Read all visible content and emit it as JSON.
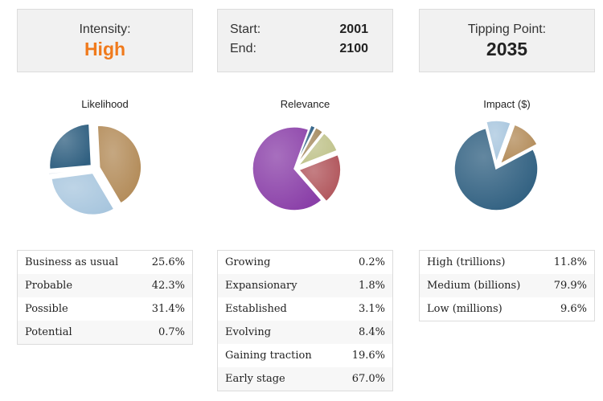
{
  "intensity": {
    "label": "Intensity:",
    "value": "High",
    "color": "#f07a1c"
  },
  "timeframe": {
    "start_label": "Start:",
    "start_value": "2001",
    "end_label": "End:",
    "end_value": "2100"
  },
  "tipping": {
    "label": "Tipping Point:",
    "value": "2035"
  },
  "chart_data": [
    {
      "type": "pie",
      "title": "Likelihood",
      "categories": [
        "Business as usual",
        "Probable",
        "Possible",
        "Potential"
      ],
      "values": [
        25.6,
        42.3,
        31.4,
        0.7
      ],
      "labels": [
        "25.6%",
        "42.3%",
        "31.4%",
        "0.7%"
      ]
    },
    {
      "type": "pie",
      "title": "Relevance",
      "categories": [
        "Growing",
        "Expansionary",
        "Established",
        "Evolving",
        "Gaining traction",
        "Early stage"
      ],
      "values": [
        0.2,
        1.8,
        3.1,
        8.4,
        19.6,
        67.0
      ],
      "labels": [
        "0.2%",
        "1.8%",
        "3.1%",
        "8.4%",
        "19.6%",
        "67.0%"
      ]
    },
    {
      "type": "pie",
      "title": "Impact ($)",
      "categories": [
        "High (trillions)",
        "Medium (billions)",
        "Low (millions)"
      ],
      "values": [
        11.8,
        79.9,
        9.6
      ],
      "labels": [
        "11.8%",
        "79.9%",
        "9.6%"
      ]
    }
  ]
}
